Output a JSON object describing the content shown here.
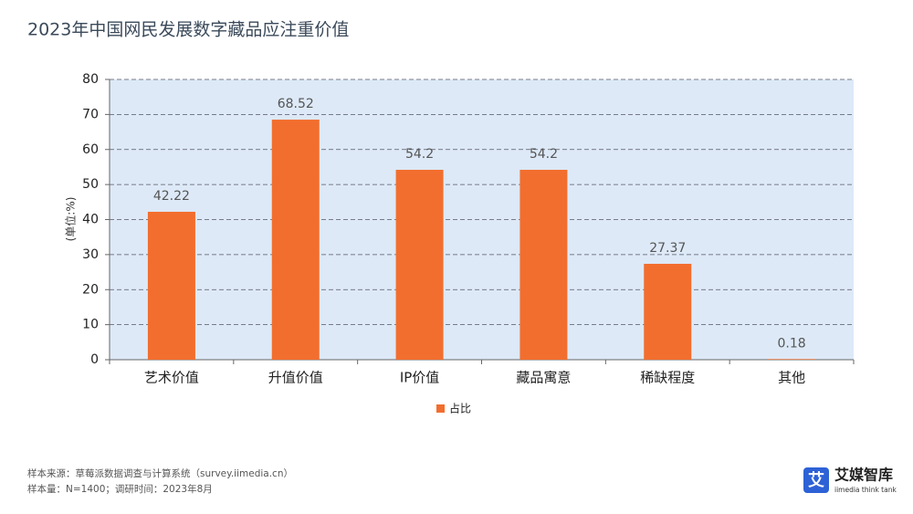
{
  "chart_data": {
    "type": "bar",
    "title": "2023年中国网民发展数字藏品应注重价值",
    "y_label": "(单位:%)",
    "categories": [
      "艺术价值",
      "升值价值",
      "IP价值",
      "藏品寓意",
      "稀缺程度",
      "其他"
    ],
    "series": [
      {
        "name": "占比",
        "color": "#f26e2e",
        "values": [
          42.22,
          68.52,
          54.2,
          54.2,
          27.37,
          0.18
        ]
      }
    ],
    "ylim": [
      0,
      80
    ],
    "yticks": [
      0,
      10,
      20,
      30,
      40,
      50,
      60,
      70,
      80
    ],
    "grid": true,
    "legend": "bottom"
  },
  "footnotes": [
    "样本来源：草莓派数据调查与计算系统（survey.iimedia.cn）",
    "样本量：N=1400；调研时间：2023年8月"
  ],
  "logo": {
    "icon": "艾",
    "name": "艾媒智库",
    "tagline": "iimedia think tank"
  }
}
